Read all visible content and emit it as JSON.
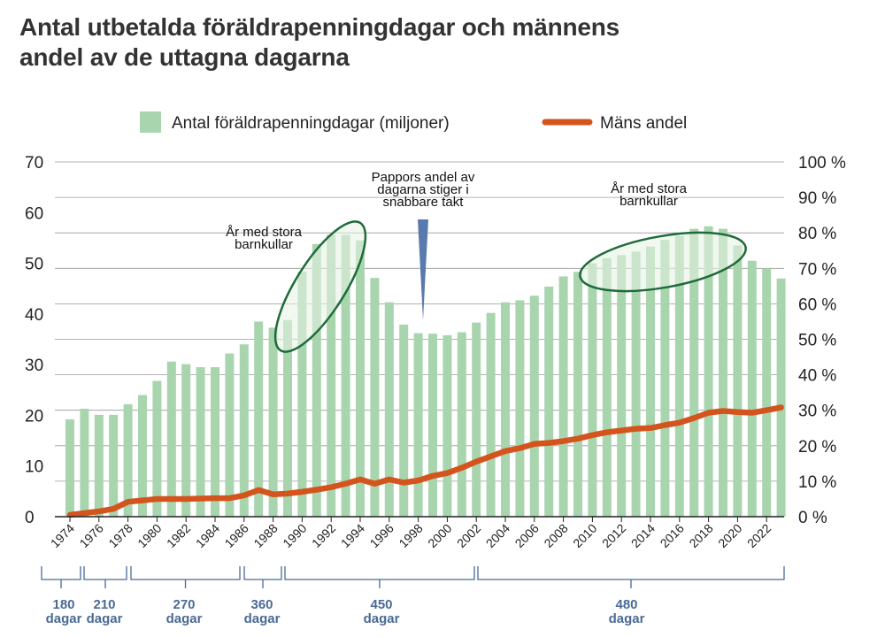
{
  "title_lines": [
    "Antal utbetalda föräldrapenningdagar och männens",
    "andel av de uttagna dagarna"
  ],
  "legend": {
    "bars_label": "Antal föräldrapenningdagar (miljoner)",
    "line_label": "Mäns andel"
  },
  "annotations": {
    "pappor": [
      "Pappors andel av",
      "dagarna stiger i",
      "snabbare takt"
    ],
    "stora_left": [
      "År med stora",
      "barnkullar"
    ],
    "stora_right": [
      "År med stora",
      "barnkullar"
    ]
  },
  "periods": [
    {
      "num": "180",
      "unit": "dagar"
    },
    {
      "num": "210",
      "unit": "dagar"
    },
    {
      "num": "270",
      "unit": "dagar"
    },
    {
      "num": "360",
      "unit": "dagar"
    },
    {
      "num": "450",
      "unit": "dagar"
    },
    {
      "num": "480",
      "unit": "dagar"
    }
  ],
  "colors": {
    "bar": "#a8d5ae",
    "line": "#d4541e",
    "ellipse": "#1f6b3a",
    "ellipse_fill": "#e6f3e4",
    "marker": "#5a7aad",
    "period": "#4a6a96",
    "axis": "#222222"
  },
  "chart_data": {
    "type": "bar",
    "title": "Antal utbetalda föräldrapenningdagar och männens andel av de uttagna dagarna",
    "categories": [
      1974,
      1975,
      1976,
      1977,
      1978,
      1979,
      1980,
      1981,
      1982,
      1983,
      1984,
      1985,
      1986,
      1987,
      1988,
      1989,
      1990,
      1991,
      1992,
      1993,
      1994,
      1995,
      1996,
      1997,
      1998,
      1999,
      2000,
      2001,
      2002,
      2003,
      2004,
      2005,
      2006,
      2007,
      2008,
      2009,
      2010,
      2011,
      2012,
      2013,
      2014,
      2015,
      2016,
      2017,
      2018,
      2019,
      2020,
      2021,
      2022,
      2023
    ],
    "xtick_labels": [
      "1974",
      "1976",
      "1978",
      "1980",
      "1982",
      "1984",
      "1986",
      "1988",
      "1990",
      "1992",
      "1994",
      "1996",
      "1998",
      "2000",
      "2002",
      "2004",
      "2006",
      "2008",
      "2010",
      "2012",
      "2014",
      "2016",
      "2018",
      "2020",
      "2022"
    ],
    "series": [
      {
        "name": "Antal föräldrapenningdagar (miljoner)",
        "axis": "left",
        "type": "bar",
        "values": [
          19.2,
          21.3,
          20.1,
          20.1,
          22.2,
          24.0,
          26.8,
          30.6,
          30.1,
          29.5,
          29.5,
          32.2,
          34.0,
          38.5,
          37.3,
          38.8,
          48.3,
          53.8,
          55.6,
          55.6,
          54.5,
          47.1,
          42.3,
          37.9,
          36.2,
          36.1,
          35.8,
          36.4,
          38.3,
          40.2,
          42.3,
          42.7,
          43.6,
          45.4,
          47.4,
          48.3,
          50.0,
          51.0,
          51.6,
          52.3,
          53.3,
          54.6,
          55.4,
          56.8,
          57.3,
          56.8,
          53.5,
          50.5,
          49.0,
          47.0
        ]
      },
      {
        "name": "Mäns andel",
        "axis": "right",
        "type": "line",
        "unit": "%",
        "values": [
          0.5,
          1.0,
          1.5,
          2.2,
          4.2,
          4.6,
          5.0,
          5.0,
          5.0,
          5.1,
          5.2,
          5.2,
          6.0,
          7.5,
          6.3,
          6.5,
          7.0,
          7.6,
          8.3,
          9.3,
          10.5,
          9.3,
          10.5,
          9.6,
          10.2,
          11.5,
          12.3,
          13.8,
          15.5,
          17.0,
          18.5,
          19.3,
          20.5,
          20.8,
          21.3,
          22.0,
          23.0,
          23.8,
          24.3,
          24.8,
          25.0,
          25.8,
          26.5,
          27.8,
          29.3,
          29.8,
          29.5,
          29.3,
          30.0,
          30.8
        ]
      }
    ],
    "y_left": {
      "min": 0,
      "max": 70,
      "ticks": [
        "0",
        "10",
        "20",
        "30",
        "40",
        "50",
        "60",
        "70"
      ]
    },
    "y_right": {
      "min": 0,
      "max": 100,
      "ticks": [
        "0 %",
        "10 %",
        "20 %",
        "30 %",
        "40 %",
        "50 %",
        "60 %",
        "70 %",
        "80 %",
        "90 %",
        "100 %"
      ]
    },
    "grid": true,
    "legend_position": "top-center"
  }
}
